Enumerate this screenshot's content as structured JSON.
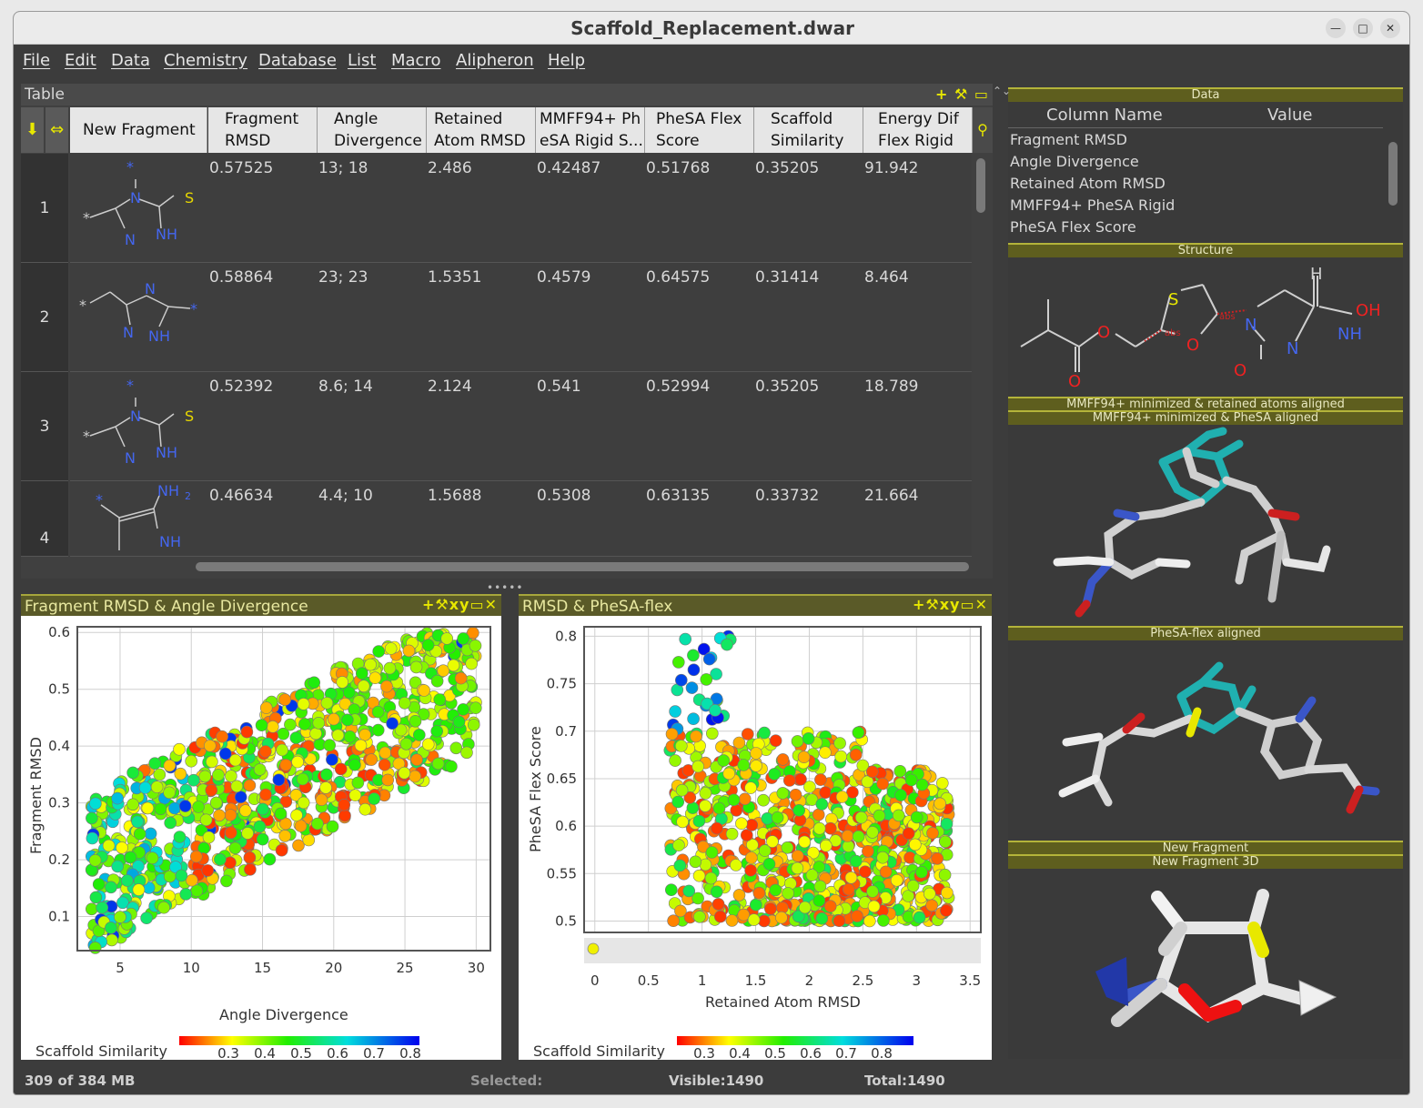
{
  "window": {
    "title": "Scaffold_Replacement.dwar",
    "min_icon": "minimize-icon",
    "max_icon": "maximize-icon",
    "close_icon": "close-icon"
  },
  "menu": [
    "File",
    "Edit",
    "Data",
    "Chemistry",
    "Database",
    "List",
    "Macro",
    "Alipheron",
    "Help"
  ],
  "table": {
    "title": "Table",
    "columns": [
      "New Fragment",
      "Fragment\nRMSD",
      "Angle\nDivergence",
      "Retained\nAtom RMSD",
      "MMFF94+ Ph\neSA Rigid S...",
      "PheSA Flex\nScore",
      "Scaffold\nSimilarity",
      "Energy Dif\nFlex Rigid"
    ],
    "rows": [
      {
        "num": "1",
        "values": [
          "0.57525",
          "13; 18",
          "2.486",
          "0.42487",
          "0.51768",
          "0.35205",
          "91.942"
        ]
      },
      {
        "num": "2",
        "values": [
          "0.58864",
          "23; 23",
          "1.5351",
          "0.4579",
          "0.64575",
          "0.31414",
          "8.464"
        ]
      },
      {
        "num": "3",
        "values": [
          "0.52392",
          "8.6; 14",
          "2.124",
          "0.541",
          "0.52994",
          "0.35205",
          "18.789"
        ]
      },
      {
        "num": "4",
        "values": [
          "0.46634",
          "4.4; 10",
          "1.5688",
          "0.5308",
          "0.63135",
          "0.33732",
          "21.664"
        ]
      }
    ]
  },
  "mol_labels": {
    "r1": [
      "*",
      "*",
      "N",
      "S",
      "N",
      "NH"
    ],
    "r2": [
      "*",
      "N",
      "*",
      "N",
      "NH"
    ],
    "r3": [
      "*",
      "*",
      "N",
      "S",
      "N",
      "NH"
    ],
    "r4": [
      "*",
      "NH",
      "2",
      "NH"
    ]
  },
  "detail": {
    "data_section": "Data",
    "col_name": "Column Name",
    "col_value": "Value",
    "items": [
      "Fragment RMSD",
      "Angle Divergence",
      "Retained Atom RMSD",
      "MMFF94+ PheSA Rigid",
      "PheSA Flex Score"
    ],
    "structure_section": "Structure",
    "struct_labels": [
      "H",
      "S",
      "OH",
      "O",
      "abs",
      "abs",
      "O",
      "N",
      "NH",
      "O",
      "O",
      "N"
    ],
    "sec_mmff_retained": "MMFF94+ minimized & retained atoms aligned",
    "sec_mmff_phesa": "MMFF94+ minimized & PheSA aligned",
    "sec_phesa_flex": "PheSA-flex aligned",
    "sec_new_fragment": "New Fragment",
    "sec_new_fragment_3d": "New Fragment 3D"
  },
  "plot1": {
    "title": "Fragment RMSD & Angle Divergence",
    "tools": "xy",
    "colorbar_label": "Scaffold Similarity",
    "colorbar_ticks": [
      "0.3",
      "0.4",
      "0.5",
      "0.6",
      "0.7",
      "0.8"
    ]
  },
  "plot2": {
    "title": "RMSD & PheSA-flex",
    "tools": "xy",
    "colorbar_label": "Scaffold Similarity",
    "colorbar_ticks": [
      "0.3",
      "0.4",
      "0.5",
      "0.6",
      "0.7",
      "0.8"
    ]
  },
  "chart_data": [
    {
      "type": "scatter",
      "xlabel": "Angle Divergence",
      "ylabel": "Fragment RMSD",
      "xlim": [
        2,
        31
      ],
      "ylim": [
        0.04,
        0.61
      ],
      "xticks": [
        "5",
        "10",
        "15",
        "20",
        "25",
        "30"
      ],
      "yticks": [
        "0.1",
        "0.2",
        "0.3",
        "0.4",
        "0.5",
        "0.6"
      ],
      "color_by": "Scaffold Similarity",
      "n_points": 1490
    },
    {
      "type": "scatter",
      "xlabel": "Retained Atom RMSD",
      "ylabel": "PheSA Flex Score",
      "xlim": [
        -0.1,
        3.6
      ],
      "ylim": [
        0.488,
        0.81
      ],
      "xticks": [
        "0",
        "0.5",
        "1",
        "1.5",
        "2",
        "2.5",
        "3",
        "3.5"
      ],
      "yticks": [
        "0.5",
        "0.55",
        "0.6",
        "0.65",
        "0.7",
        "0.75",
        "0.8"
      ],
      "color_by": "Scaffold Similarity",
      "n_points": 1490
    }
  ],
  "status": {
    "memory": "309 of 384 MB",
    "selected": "Selected:",
    "visible": "Visible:1490",
    "total": "Total:1490"
  },
  "colors": {
    "accent": "#e8e800",
    "header_bg": "#e6e6e6",
    "panel_bg": "#3c3c3c"
  }
}
